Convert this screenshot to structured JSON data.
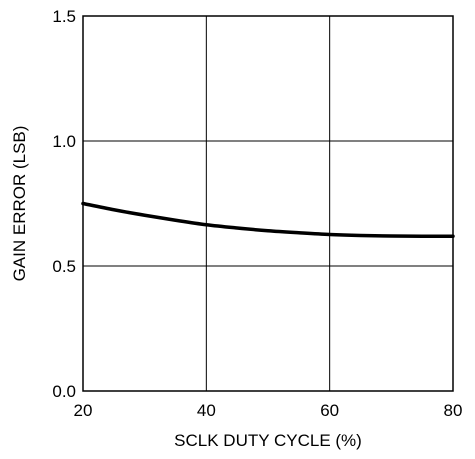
{
  "chart_data": {
    "type": "line",
    "title": "",
    "xlabel": "SCLK DUTY CYCLE (%)",
    "ylabel": "GAIN ERROR (LSB)",
    "xlim": [
      20,
      80
    ],
    "ylim": [
      0,
      1.5
    ],
    "x_ticks": [
      20,
      40,
      60,
      80
    ],
    "x_tick_labels": [
      "20",
      "40",
      "60",
      "80"
    ],
    "y_ticks": [
      0,
      0.5,
      1.0,
      1.5
    ],
    "y_tick_labels": [
      "0.0",
      "0.5",
      "1.0",
      "1.5"
    ],
    "grid": true,
    "legend": "none",
    "line_color": "#000000",
    "series": [
      {
        "x": [
          20,
          25,
          30,
          35,
          40,
          45,
          50,
          55,
          60,
          65,
          70,
          75,
          80
        ],
        "y": [
          0.75,
          0.725,
          0.703,
          0.683,
          0.665,
          0.652,
          0.641,
          0.633,
          0.626,
          0.622,
          0.62,
          0.619,
          0.619
        ]
      }
    ]
  }
}
